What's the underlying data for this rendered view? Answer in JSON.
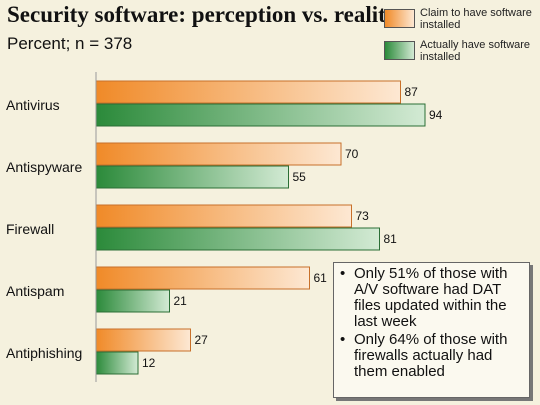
{
  "header": {
    "title": "Security software: perception vs. reality",
    "subtitle": "Percent; n = 378"
  },
  "legend": {
    "claim": "Claim to have software installed",
    "actual": "Actually have software installed"
  },
  "colors": {
    "claim_dark": "#f08a28",
    "claim_light": "#fde8d3",
    "actual_dark": "#2b8a3a",
    "actual_light": "#d3ead4",
    "background": "#f5f1de"
  },
  "notes": [
    "Only 51% of those with A/V software had DAT files updated within the last week",
    "Only 64% of those with firewalls actually had them enabled"
  ],
  "chart_data": {
    "type": "bar",
    "orientation": "horizontal",
    "title": "Security software: perception vs. reality",
    "subtitle": "Percent; n = 378",
    "categories": [
      "Antivirus",
      "Antispyware",
      "Firewall",
      "Antispam",
      "Antiphishing"
    ],
    "series": [
      {
        "name": "Claim to have software installed",
        "values": [
          87,
          70,
          73,
          61,
          27
        ]
      },
      {
        "name": "Actually have software installed",
        "values": [
          94,
          55,
          81,
          21,
          12
        ]
      }
    ],
    "xlim": [
      0,
      100
    ],
    "grid": false,
    "legend_position": "top-right"
  }
}
